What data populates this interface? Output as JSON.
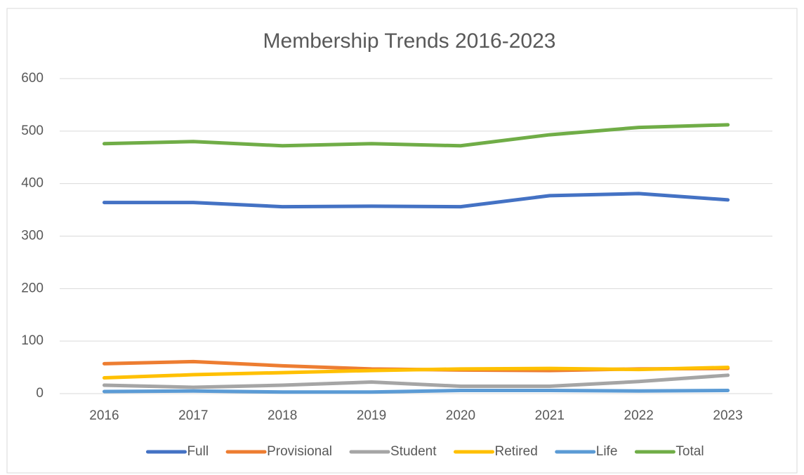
{
  "chart_data": {
    "type": "line",
    "title": "Membership Trends 2016-2023",
    "categories": [
      "2016",
      "2017",
      "2018",
      "2019",
      "2020",
      "2021",
      "2022",
      "2023"
    ],
    "series": [
      {
        "name": "Full",
        "color": "#4472c4",
        "values": [
          364,
          364,
          356,
          357,
          356,
          377,
          381,
          369
        ]
      },
      {
        "name": "Provisional",
        "color": "#ed7d31",
        "values": [
          57,
          61,
          53,
          47,
          45,
          44,
          47,
          48
        ]
      },
      {
        "name": "Student",
        "color": "#a5a5a5",
        "values": [
          16,
          12,
          16,
          22,
          14,
          14,
          23,
          35
        ]
      },
      {
        "name": "Retired",
        "color": "#ffc000",
        "values": [
          30,
          36,
          40,
          44,
          47,
          48,
          46,
          50
        ]
      },
      {
        "name": "Life",
        "color": "#5b9bd5",
        "values": [
          4,
          5,
          3,
          3,
          6,
          6,
          5,
          6
        ]
      },
      {
        "name": "Total",
        "color": "#70ad47",
        "values": [
          476,
          480,
          472,
          476,
          472,
          493,
          507,
          512
        ]
      }
    ],
    "ylim": [
      0,
      600
    ],
    "yticks": [
      0,
      100,
      200,
      300,
      400,
      500,
      600
    ],
    "grid": true,
    "legend": "bottom"
  }
}
